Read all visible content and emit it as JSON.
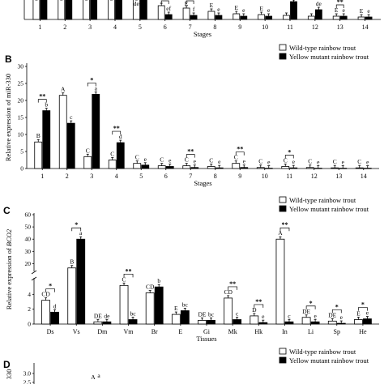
{
  "figure": {
    "colors": {
      "wild": "#ffffff",
      "mutant": "#000000",
      "stroke": "#000000"
    },
    "legend": {
      "wild_label": "Wild-type rainbow trout",
      "mutant_label": "Yellow mutant rainbow trout"
    }
  },
  "chart_data": [
    {
      "id": "A",
      "panel_label": "",
      "type": "bar",
      "partial": true,
      "xlabel": "Stages",
      "ylabel": "",
      "categories": [
        "1",
        "2",
        "3",
        "4",
        "5",
        "6",
        "7",
        "8",
        "9",
        "10",
        "11",
        "12",
        "13",
        "14"
      ],
      "series": [
        {
          "name": "Wild-type rainbow trout",
          "values": [
            2.0,
            2.0,
            2.0,
            2.0,
            0.25,
            0.17,
            0.14,
            0.1,
            0.07,
            0.06,
            0.05,
            0.04,
            0.04,
            0.03
          ]
        },
        {
          "name": "Yellow mutant rainbow trout",
          "values": [
            2.0,
            2.0,
            2.0,
            2.0,
            0.25,
            0.06,
            0.05,
            0.05,
            0.04,
            0.04,
            0.22,
            0.12,
            0.04,
            0.03
          ]
        }
      ],
      "letters": [
        [
          "",
          ""
        ],
        [
          "",
          ""
        ],
        [
          "",
          ""
        ],
        [
          "",
          ""
        ],
        [
          "de",
          ""
        ],
        [
          "",
          "ef"
        ],
        [
          "E",
          "f"
        ],
        [
          "E",
          "e"
        ],
        [
          "E",
          "e"
        ],
        [
          "E",
          "e"
        ],
        [
          "",
          "a"
        ],
        [
          "",
          "de"
        ],
        [
          "E",
          "e"
        ],
        [
          "E",
          "e"
        ]
      ],
      "stars": [
        "",
        "",
        "",
        "",
        "",
        "**",
        "**",
        "",
        "",
        "",
        "",
        "",
        "**",
        ""
      ]
    },
    {
      "id": "B",
      "panel_label": "B",
      "type": "bar",
      "xlabel": "Stages",
      "ylabel": "Relative expression of miR-330",
      "ylim": [
        0,
        30
      ],
      "yticks": [
        "0",
        "5",
        "10",
        "15",
        "20",
        "25",
        "30"
      ],
      "legend": "top-right",
      "categories": [
        "1",
        "2",
        "3",
        "4",
        "5",
        "6",
        "7",
        "8",
        "9",
        "10",
        "11",
        "12",
        "13",
        "14"
      ],
      "series": [
        {
          "name": "Wild-type rainbow trout",
          "values": [
            7.8,
            21.5,
            3.5,
            2.5,
            1.5,
            0.8,
            0.8,
            0.6,
            1.5,
            0.3,
            0.6,
            0.3,
            0.2,
            0.2
          ]
        },
        {
          "name": "Yellow mutant rainbow trout",
          "values": [
            17.0,
            13.3,
            21.8,
            7.6,
            1.0,
            0.6,
            0.3,
            0.2,
            0.3,
            0.1,
            0.2,
            0.1,
            0.1,
            0.1
          ]
        }
      ],
      "letters": [
        [
          "B",
          "b"
        ],
        [
          "A",
          "c"
        ],
        [
          "C",
          "a"
        ],
        [
          "C",
          "d"
        ],
        [
          "C",
          "e"
        ],
        [
          "C",
          "e"
        ],
        [
          "C",
          "e"
        ],
        [
          "C",
          "e"
        ],
        [
          "C",
          "e"
        ],
        [
          "C",
          "e"
        ],
        [
          "C",
          "e"
        ],
        [
          "C",
          "e"
        ],
        [
          "C",
          "e"
        ],
        [
          "C",
          "e"
        ]
      ],
      "stars": [
        "**",
        "",
        "*",
        "**",
        "",
        "",
        "**",
        "",
        "**",
        "",
        "*",
        "",
        "",
        ""
      ]
    },
    {
      "id": "C",
      "panel_label": "C",
      "type": "bar",
      "xlabel": "Tissues",
      "ylabel_prefix": "Relative expression of ",
      "ylabel_gene": "BCO2",
      "axis_break": [
        6,
        15
      ],
      "lower_ticks": [
        "0",
        "2",
        "4"
      ],
      "upper_ticks": [
        "20",
        "30",
        "40",
        "50",
        "60"
      ],
      "legend": "top-right",
      "categories": [
        "Ds",
        "Vs",
        "Dm",
        "Vm",
        "Br",
        "E",
        "Gi",
        "Mk",
        "Hk",
        "In",
        "Li",
        "Sp",
        "He"
      ],
      "series": [
        {
          "name": "Wild-type rainbow trout",
          "values": [
            3.2,
            16.5,
            0.3,
            5.2,
            4.2,
            1.3,
            0.5,
            3.5,
            1.1,
            40.0,
            0.9,
            0.4,
            0.6
          ]
        },
        {
          "name": "Yellow mutant rainbow trout",
          "values": [
            1.6,
            40.0,
            0.3,
            0.6,
            5.0,
            1.8,
            0.5,
            0.6,
            0.2,
            0.3,
            0.3,
            0.1,
            0.7
          ]
        }
      ],
      "letters": [
        [
          "CD",
          "d"
        ],
        [
          "B",
          "a"
        ],
        [
          "DE",
          "de"
        ],
        [
          "C",
          "bc"
        ],
        [
          "CD",
          "b"
        ],
        [
          "E",
          "bc"
        ],
        [
          "DE",
          "bc"
        ],
        [
          "CD",
          "c"
        ],
        [
          "D",
          "e"
        ],
        [
          "A",
          "c"
        ],
        [
          "DE",
          "e"
        ],
        [
          "DE",
          "e"
        ],
        [
          "E",
          "e"
        ]
      ],
      "stars": [
        "*",
        "*",
        "",
        "**",
        "",
        "",
        "",
        "**",
        "**",
        "**",
        "*",
        "*",
        "*"
      ]
    },
    {
      "id": "D",
      "panel_label": "D",
      "type": "bar",
      "partial": true,
      "ylabel": "330",
      "yticks": [
        "2.5",
        "3.0"
      ],
      "legend": "top-right",
      "top_letters": [
        "A",
        "a"
      ],
      "series": [
        {
          "name": "Wild-type rainbow trout"
        },
        {
          "name": "Yellow mutant rainbow trout"
        }
      ]
    }
  ]
}
